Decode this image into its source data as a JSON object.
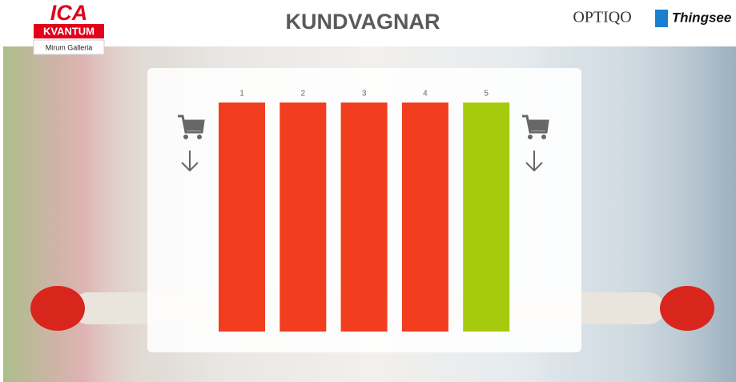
{
  "header": {
    "logo_main": "ICA",
    "logo_sub": "KVANTUM",
    "store": "Mirum Galleria",
    "title": "KUNDVAGNAR",
    "partner_1": "OPTIQO",
    "partner_2": "Thingsee"
  },
  "lanes": [
    {
      "label": "1",
      "color": "#f23d1f"
    },
    {
      "label": "2",
      "color": "#f23d1f"
    },
    {
      "label": "3",
      "color": "#f23d1f"
    },
    {
      "label": "4",
      "color": "#f23d1f"
    },
    {
      "label": "5",
      "color": "#a5cb0c"
    }
  ]
}
